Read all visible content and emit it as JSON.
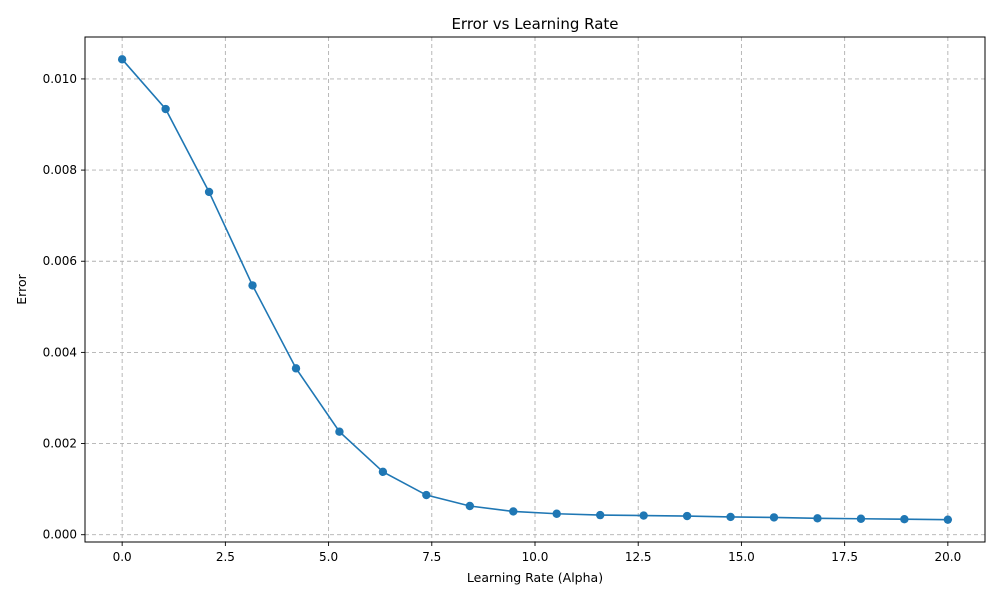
{
  "chart_data": {
    "type": "line",
    "title": "Error vs Learning Rate",
    "xlabel": "Learning Rate (Alpha)",
    "ylabel": "Error",
    "xlim": [
      -0.9,
      20.9
    ],
    "ylim": [
      -0.00016,
      0.01092
    ],
    "x_ticks": [
      0.0,
      2.5,
      5.0,
      7.5,
      10.0,
      12.5,
      15.0,
      17.5,
      20.0
    ],
    "x_tick_labels": [
      "0.0",
      "2.5",
      "5.0",
      "7.5",
      "10.0",
      "12.5",
      "15.0",
      "17.5",
      "20.0"
    ],
    "y_ticks": [
      0.0,
      0.002,
      0.004,
      0.006,
      0.008,
      0.01
    ],
    "y_tick_labels": [
      "0.000",
      "0.002",
      "0.004",
      "0.006",
      "0.008",
      "0.010"
    ],
    "grid": true,
    "marker": "circle",
    "color": "#1f77b4",
    "series": [
      {
        "x": [
          0.0,
          1.053,
          2.105,
          3.158,
          4.211,
          5.263,
          6.316,
          7.368,
          8.421,
          9.474,
          10.526,
          11.579,
          12.632,
          13.684,
          14.737,
          15.789,
          16.842,
          17.895,
          18.947,
          20.0
        ],
        "values": [
          0.01043,
          0.00934,
          0.00752,
          0.00547,
          0.00365,
          0.00226,
          0.00138,
          0.00087,
          0.00063,
          0.00051,
          0.00046,
          0.00043,
          0.00042,
          0.00041,
          0.00039,
          0.00038,
          0.00036,
          0.00035,
          0.00034,
          0.00033
        ]
      }
    ]
  }
}
